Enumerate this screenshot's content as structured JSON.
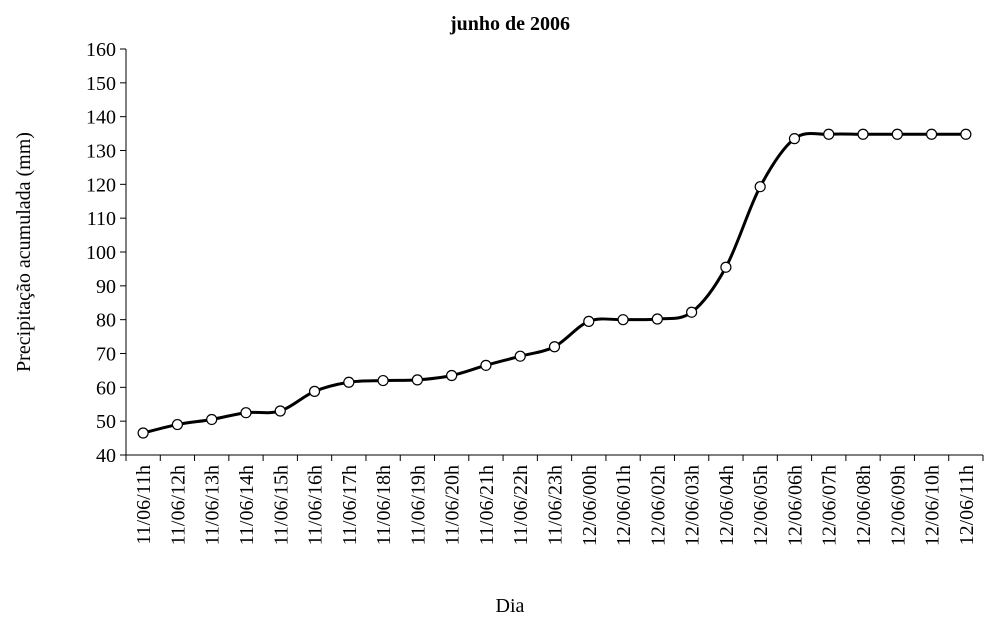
{
  "chart_data": {
    "type": "line",
    "title": "junho de 2006",
    "x_label": "Dia",
    "y_label": "Precipitação acumulada  (mm)",
    "categories": [
      "11/06/11h",
      "11/06/12h",
      "11/06/13h",
      "11/06/14h",
      "11/06/15h",
      "11/06/16h",
      "11/06/17h",
      "11/06/18h",
      "11/06/19h",
      "11/06/20h",
      "11/06/21h",
      "11/06/22h",
      "11/06/23h",
      "12/06/00h",
      "12/06/01h",
      "12/06/02h",
      "12/06/03h",
      "12/06/04h",
      "12/06/05h",
      "12/06/06h",
      "12/06/07h",
      "12/06/08h",
      "12/06/09h",
      "12/06/10h",
      "12/06/11h"
    ],
    "values": [
      46.5,
      49,
      50.5,
      52.5,
      53,
      58.8,
      61.5,
      62,
      62.2,
      63.5,
      66.5,
      69.2,
      72,
      79.5,
      80,
      80.2,
      82.2,
      95.5,
      119.3,
      133.5,
      134.8,
      134.8,
      134.8,
      134.8,
      134.8
    ],
    "color": "#000000",
    "ylim": [
      40,
      160
    ],
    "yticks": [
      40,
      50,
      60,
      70,
      80,
      90,
      100,
      110,
      120,
      130,
      140,
      150,
      160
    ],
    "grid": false,
    "smooth": true,
    "markers": true
  }
}
